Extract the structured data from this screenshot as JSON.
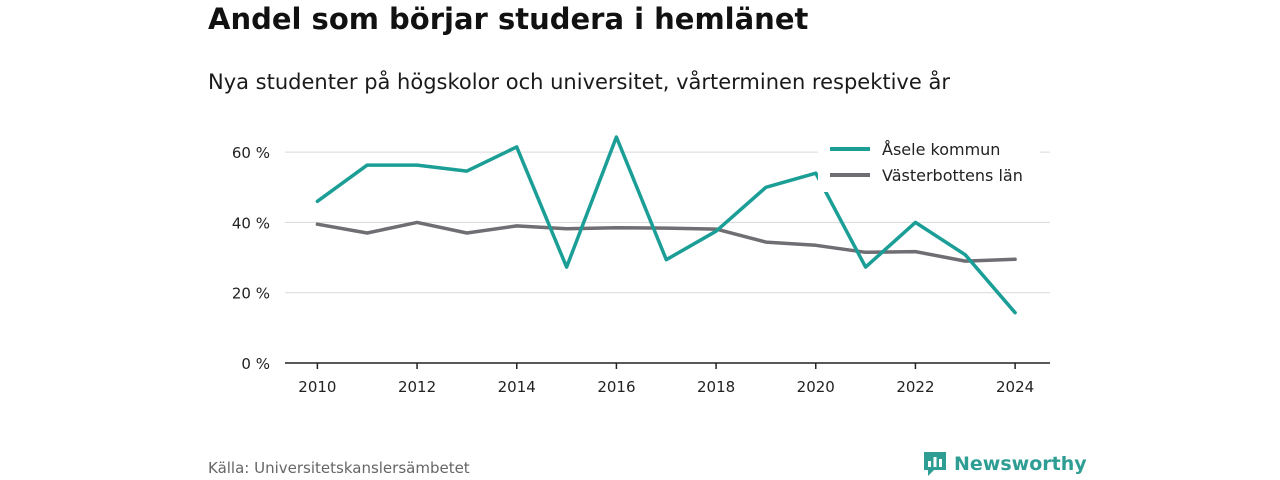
{
  "header": {
    "title": "Andel som börjar studera i hemlänet",
    "subtitle": "Nya studenter på högskolor och universitet, vårterminen respektive år"
  },
  "footer": {
    "source": "Källa: Universitetskanslersämbetet",
    "brand": "Newsworthy",
    "brand_icon": "bar-chart-logo-icon",
    "brand_color": "#2e9d93"
  },
  "chart_data": {
    "type": "line",
    "x": [
      2010,
      2011,
      2012,
      2013,
      2014,
      2015,
      2016,
      2017,
      2018,
      2019,
      2020,
      2021,
      2022,
      2023,
      2024
    ],
    "xticks": [
      2010,
      2012,
      2014,
      2016,
      2018,
      2020,
      2022,
      2024
    ],
    "xtick_labels": [
      "2010",
      "2012",
      "2014",
      "2016",
      "2018",
      "2020",
      "2022",
      "2024"
    ],
    "yticks": [
      0,
      20,
      40,
      60
    ],
    "ytick_labels": [
      "0 %",
      "20 %",
      "40 %",
      "60 %"
    ],
    "ylim": [
      0,
      70
    ],
    "xlim": [
      2009.35,
      2024.7
    ],
    "grid": true,
    "legend_position": "top-right",
    "series": [
      {
        "name": "Åsele kommun",
        "color": "#1a9e96",
        "values": [
          46,
          56.3,
          56.3,
          54.6,
          61.5,
          27.3,
          64.3,
          29.4,
          37.5,
          50,
          54,
          27.3,
          40,
          30.8,
          14.3
        ]
      },
      {
        "name": "Västerbottens län",
        "color": "#6e6e73",
        "values": [
          39.5,
          37,
          40,
          37,
          39,
          38.2,
          38.5,
          38.4,
          38.1,
          34.4,
          33.5,
          31.5,
          31.7,
          29,
          29.5
        ]
      }
    ]
  }
}
